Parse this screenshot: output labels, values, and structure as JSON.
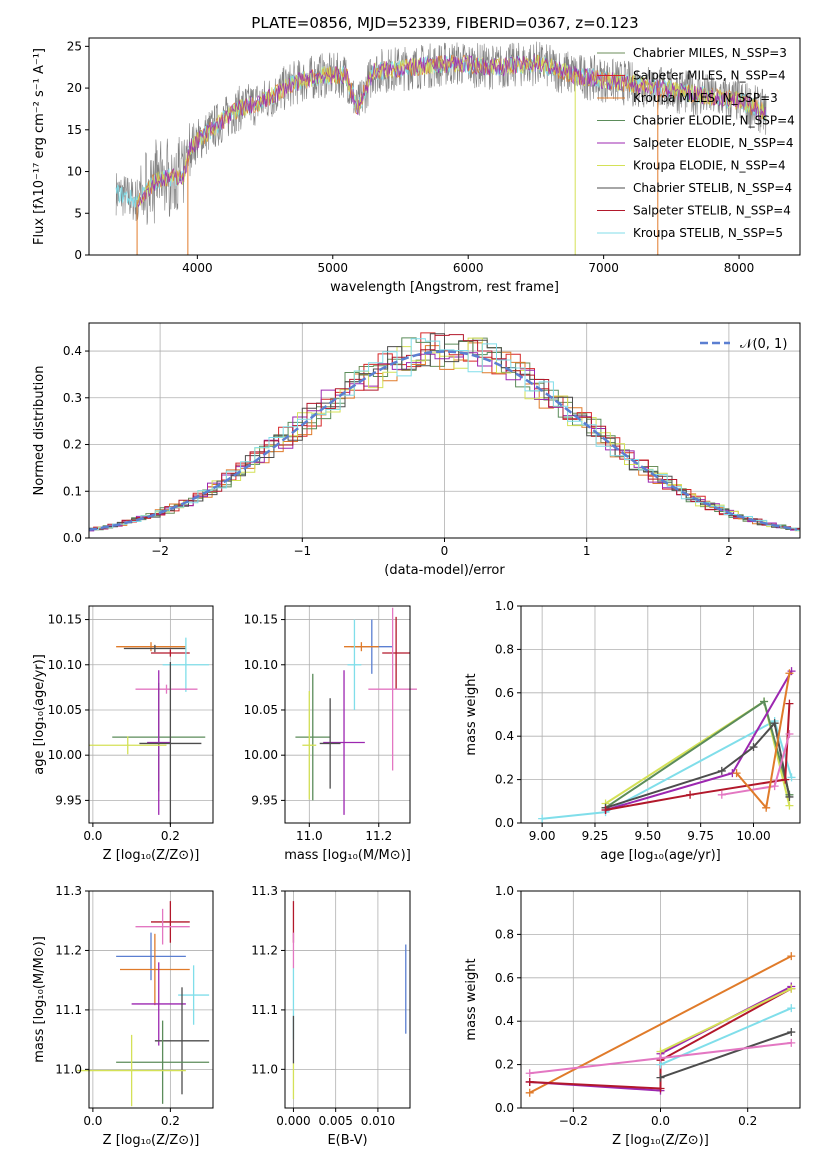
{
  "figure": {
    "title": "PLATE=0856, MJD=52339, FIBERID=0367, z=0.123"
  },
  "colors": {
    "chabrier_miles": "#6b8e5a",
    "salpeter_miles": "#d62728",
    "kroupa_miles": "#e07b2a",
    "chabrier_elodie": "#5b8c5a",
    "salpeter_elodie": "#9c27b0",
    "kroupa_elodie": "#d4e157",
    "chabrier_stelib": "#4d4d4d",
    "salpeter_stelib": "#b2182b",
    "kroupa_stelib": "#80deea",
    "data": "#808080",
    "normal": "#5b7fd1",
    "pink": "#e377c2",
    "blue": "#5b7fd1"
  },
  "chart_data": [
    {
      "id": "spectrum",
      "type": "line",
      "xlabel": "wavelength [Angstrom, rest frame]",
      "ylabel": "Flux [fλ10⁻¹⁷ erg cm⁻² s⁻¹ A⁻¹]",
      "xlim": [
        3200,
        8450
      ],
      "ylim": [
        0,
        26
      ],
      "xticks": [
        4000,
        5000,
        6000,
        7000,
        8000
      ],
      "yticks": [
        0,
        5,
        10,
        15,
        20,
        25
      ],
      "grid": false,
      "legend_position": "top-right",
      "legend": [
        {
          "label": "Chabrier MILES, N_SSP=3",
          "color_key": "chabrier_miles"
        },
        {
          "label": "Salpeter MILES, N_SSP=4",
          "color_key": "salpeter_miles"
        },
        {
          "label": "Kroupa MILES, N_SSP=3",
          "color_key": "kroupa_miles"
        },
        {
          "label": "Chabrier ELODIE, N_SSP=4",
          "color_key": "chabrier_elodie"
        },
        {
          "label": "Salpeter ELODIE, N_SSP=4",
          "color_key": "salpeter_elodie"
        },
        {
          "label": "Kroupa ELODIE, N_SSP=4",
          "color_key": "kroupa_elodie"
        },
        {
          "label": "Chabrier STELIB, N_SSP=4",
          "color_key": "chabrier_stelib"
        },
        {
          "label": "Salpeter STELIB, N_SSP=4",
          "color_key": "salpeter_stelib"
        },
        {
          "label": "Kroupa STELIB, N_SSP=5",
          "color_key": "kroupa_stelib"
        }
      ],
      "continuum": [
        [
          3400,
          7.5
        ],
        [
          3550,
          6.5
        ],
        [
          3700,
          9
        ],
        [
          3900,
          9.5
        ],
        [
          3950,
          13
        ],
        [
          4100,
          15
        ],
        [
          4300,
          17.5
        ],
        [
          4500,
          18.5
        ],
        [
          4700,
          20.5
        ],
        [
          4900,
          21.5
        ],
        [
          5100,
          21.5
        ],
        [
          5180,
          17.5
        ],
        [
          5300,
          22
        ],
        [
          5600,
          22.5
        ],
        [
          5900,
          23
        ],
        [
          6200,
          22.5
        ],
        [
          6500,
          23
        ],
        [
          6800,
          21.5
        ],
        [
          7200,
          20.5
        ],
        [
          7600,
          19.5
        ],
        [
          8000,
          18.5
        ],
        [
          8200,
          17
        ]
      ]
    },
    {
      "id": "residuals",
      "type": "histogram",
      "xlabel": "(data-model)/error",
      "ylabel": "Normed distribution",
      "xlim": [
        -2.5,
        2.5
      ],
      "ylim": [
        0,
        0.46
      ],
      "xticks": [
        -2,
        -1,
        0,
        1,
        2
      ],
      "yticks": [
        0.0,
        0.1,
        0.2,
        0.3,
        0.4
      ],
      "grid": true,
      "legend_position": "top-right",
      "legend": [
        {
          "label": "𝒩(0, 1)",
          "color_key": "normal"
        }
      ]
    },
    {
      "id": "age_vs_Z",
      "type": "errorbar",
      "xlabel": "Z [log₁₀(Z/Z⊙)]",
      "ylabel": "age  [log₁₀(age/yr)]",
      "xlim": [
        -0.01,
        0.31
      ],
      "ylim": [
        9.925,
        10.165
      ],
      "xticks": [
        0.0,
        0.2
      ],
      "yticks": [
        9.95,
        10.0,
        10.05,
        10.1,
        10.15
      ],
      "grid": true,
      "points": [
        {
          "x": 0.15,
          "y": 10.12,
          "xerr": 0.09,
          "yerr": 0.005,
          "color_key": "kroupa_miles"
        },
        {
          "x": 0.16,
          "y": 10.118,
          "xerr": 0.08,
          "yerr": 0.004,
          "color_key": "chabrier_stelib"
        },
        {
          "x": 0.2,
          "y": 10.113,
          "xerr": 0.05,
          "yerr": 0.004,
          "color_key": "salpeter_stelib"
        },
        {
          "x": 0.24,
          "y": 10.1,
          "xerr": 0.06,
          "yerr": 0.03,
          "color_key": "kroupa_stelib"
        },
        {
          "x": 0.19,
          "y": 10.073,
          "xerr": 0.08,
          "yerr": 0.005,
          "color_key": "pink"
        },
        {
          "x": 0.17,
          "y": 10.02,
          "xerr": 0.12,
          "yerr": 0.06,
          "color_key": "chabrier_elodie"
        },
        {
          "x": 0.17,
          "y": 10.014,
          "xerr": 0.03,
          "yerr": 0.08,
          "color_key": "salpeter_elodie"
        },
        {
          "x": 0.2,
          "y": 10.013,
          "xerr": 0.08,
          "yerr": 0.09,
          "color_key": "chabrier_stelib"
        },
        {
          "x": 0.09,
          "y": 10.011,
          "xerr": 0.1,
          "yerr": 0.01,
          "color_key": "kroupa_elodie"
        }
      ]
    },
    {
      "id": "age_vs_mass",
      "type": "errorbar",
      "xlabel": "mass [log₁₀(M/M⊙)]",
      "ylabel": "",
      "xlim": [
        10.93,
        11.29
      ],
      "ylim": [
        9.925,
        10.165
      ],
      "xticks": [
        11.0,
        11.2
      ],
      "yticks": [
        9.95,
        10.0,
        10.05,
        10.1,
        10.15
      ],
      "grid": true,
      "points": [
        {
          "x": 11.18,
          "y": 10.12,
          "xerr": 0.06,
          "yerr": 0.03,
          "color_key": "blue"
        },
        {
          "x": 11.15,
          "y": 10.12,
          "xerr": 0.05,
          "yerr": 0.005,
          "color_key": "kroupa_miles"
        },
        {
          "x": 11.13,
          "y": 10.1,
          "xerr": 0.02,
          "yerr": 0.05,
          "color_key": "kroupa_stelib"
        },
        {
          "x": 11.25,
          "y": 10.113,
          "xerr": 0.04,
          "yerr": 0.04,
          "color_key": "salpeter_stelib"
        },
        {
          "x": 11.24,
          "y": 10.073,
          "xerr": 0.07,
          "yerr": 0.09,
          "color_key": "pink"
        },
        {
          "x": 11.01,
          "y": 10.02,
          "xerr": 0.05,
          "yerr": 0.07,
          "color_key": "chabrier_elodie"
        },
        {
          "x": 11.1,
          "y": 10.014,
          "xerr": 0.06,
          "yerr": 0.08,
          "color_key": "salpeter_elodie"
        },
        {
          "x": 11.06,
          "y": 10.013,
          "xerr": 0.03,
          "yerr": 0.05,
          "color_key": "chabrier_stelib"
        },
        {
          "x": 11.0,
          "y": 10.011,
          "xerr": 0.02,
          "yerr": 0.06,
          "color_key": "kroupa_elodie"
        }
      ]
    },
    {
      "id": "weight_vs_age",
      "type": "line",
      "xlabel": "age  [log₁₀(age/yr)]",
      "ylabel": "mass weight",
      "xlim": [
        8.9,
        10.22
      ],
      "ylim": [
        0,
        1.0
      ],
      "xticks": [
        9.0,
        9.25,
        9.5,
        9.75,
        10.0
      ],
      "xticklabels": [
        "9.00",
        "9.25",
        "9.50",
        "9.75",
        "10.00"
      ],
      "yticks": [
        0.0,
        0.2,
        0.4,
        0.6,
        0.8,
        1.0
      ],
      "grid": true,
      "series": [
        {
          "color_key": "kroupa_stelib",
          "x": [
            9.0,
            9.3,
            10.1,
            10.18
          ],
          "y": [
            0.02,
            0.05,
            0.47,
            0.21
          ]
        },
        {
          "color_key": "kroupa_elodie",
          "x": [
            9.3,
            10.05,
            10.17
          ],
          "y": [
            0.09,
            0.56,
            0.08
          ]
        },
        {
          "color_key": "chabrier_elodie",
          "x": [
            9.3,
            10.05,
            10.17
          ],
          "y": [
            0.07,
            0.56,
            0.13
          ]
        },
        {
          "color_key": "salpeter_elodie",
          "x": [
            9.3,
            9.9,
            10.18
          ],
          "y": [
            0.06,
            0.23,
            0.7
          ]
        },
        {
          "color_key": "chabrier_stelib",
          "x": [
            9.3,
            9.85,
            10.0,
            10.1,
            10.17
          ],
          "y": [
            0.07,
            0.24,
            0.35,
            0.46,
            0.12
          ]
        },
        {
          "color_key": "salpeter_stelib",
          "x": [
            9.3,
            9.7,
            10.15,
            10.17
          ],
          "y": [
            0.06,
            0.13,
            0.2,
            0.55
          ]
        },
        {
          "color_key": "pink",
          "x": [
            9.85,
            10.1,
            10.17
          ],
          "y": [
            0.13,
            0.17,
            0.41
          ]
        },
        {
          "color_key": "kroupa_miles",
          "x": [
            9.92,
            10.06,
            10.17
          ],
          "y": [
            0.23,
            0.07,
            0.69
          ]
        }
      ]
    },
    {
      "id": "mass_vs_Z",
      "type": "errorbar",
      "xlabel": "Z [log₁₀(Z/Z⊙)]",
      "ylabel": "mass [log₁₀(M/M⊙)]",
      "xlim": [
        -0.01,
        0.31
      ],
      "ylim": [
        10.935,
        11.3
      ],
      "xticks": [
        0.0,
        0.2
      ],
      "yticks": [
        11.0,
        11.1,
        11.2,
        11.3
      ],
      "grid": true,
      "points": [
        {
          "x": 0.2,
          "y": 11.248,
          "xerr": 0.05,
          "yerr": 0.035,
          "color_key": "salpeter_stelib"
        },
        {
          "x": 0.18,
          "y": 11.24,
          "xerr": 0.07,
          "yerr": 0.03,
          "color_key": "pink"
        },
        {
          "x": 0.15,
          "y": 11.19,
          "xerr": 0.09,
          "yerr": 0.04,
          "color_key": "blue"
        },
        {
          "x": 0.16,
          "y": 11.168,
          "xerr": 0.09,
          "yerr": 0.06,
          "color_key": "kroupa_miles"
        },
        {
          "x": 0.26,
          "y": 11.125,
          "xerr": 0.04,
          "yerr": 0.05,
          "color_key": "kroupa_stelib"
        },
        {
          "x": 0.17,
          "y": 11.11,
          "xerr": 0.07,
          "yerr": 0.07,
          "color_key": "salpeter_elodie"
        },
        {
          "x": 0.23,
          "y": 11.048,
          "xerr": 0.07,
          "yerr": 0.09,
          "color_key": "chabrier_stelib"
        },
        {
          "x": 0.18,
          "y": 11.012,
          "xerr": 0.12,
          "yerr": 0.07,
          "color_key": "chabrier_elodie"
        },
        {
          "x": 0.1,
          "y": 10.998,
          "xerr": 0.14,
          "yerr": 0.06,
          "color_key": "kroupa_elodie"
        }
      ]
    },
    {
      "id": "mass_vs_ebv",
      "type": "errorbar",
      "xlabel": "E(B-V)",
      "ylabel": "",
      "xlim": [
        -0.001,
        0.0138
      ],
      "ylim": [
        10.935,
        11.3
      ],
      "xticks": [
        0.0,
        0.005,
        0.01
      ],
      "xticklabels": [
        "0.000",
        "0.005",
        "0.010"
      ],
      "yticks": [
        11.0,
        11.1,
        11.2,
        11.3
      ],
      "grid": true,
      "points": [
        {
          "x": 0.0,
          "y": 11.248,
          "xerr": 0,
          "yerr": 0.035,
          "color_key": "salpeter_stelib"
        },
        {
          "x": 0.0,
          "y": 11.2,
          "xerr": 0,
          "yerr": 0.03,
          "color_key": "pink"
        },
        {
          "x": 0.0,
          "y": 11.11,
          "xerr": 0,
          "yerr": 0.06,
          "color_key": "kroupa_stelib"
        },
        {
          "x": 0.0,
          "y": 11.05,
          "xerr": 0,
          "yerr": 0.04,
          "color_key": "chabrier_stelib"
        },
        {
          "x": 0.0,
          "y": 10.98,
          "xerr": 0,
          "yerr": 0.03,
          "color_key": "kroupa_elodie"
        },
        {
          "x": 0.0133,
          "y": 11.135,
          "xerr": 0,
          "yerr": 0.075,
          "color_key": "blue"
        }
      ]
    },
    {
      "id": "weight_vs_Z",
      "type": "line",
      "xlabel": "Z [log₁₀(Z/Z⊙)]",
      "ylabel": "mass weight",
      "xlim": [
        -0.32,
        0.32
      ],
      "ylim": [
        0,
        1.0
      ],
      "xticks": [
        -0.2,
        0.0,
        0.2
      ],
      "xticklabels": [
        "−0.2",
        "0.0",
        "0.2"
      ],
      "yticks": [
        0.0,
        0.2,
        0.4,
        0.6,
        0.8,
        1.0
      ],
      "grid": true,
      "series": [
        {
          "color_key": "kroupa_miles",
          "x": [
            -0.3,
            0.3
          ],
          "y": [
            0.07,
            0.7
          ]
        },
        {
          "color_key": "salpeter_elodie",
          "x": [
            -0.3,
            0.0,
            0.0,
            0.3
          ],
          "y": [
            0.12,
            0.08,
            0.25,
            0.56
          ]
        },
        {
          "color_key": "salpeter_stelib",
          "x": [
            -0.3,
            0.0,
            0.0,
            0.3
          ],
          "y": [
            0.12,
            0.09,
            0.22,
            0.55
          ]
        },
        {
          "color_key": "kroupa_elodie",
          "x": [
            0.0,
            0.3
          ],
          "y": [
            0.26,
            0.55
          ]
        },
        {
          "color_key": "kroupa_stelib",
          "x": [
            0.0,
            0.3
          ],
          "y": [
            0.2,
            0.46
          ]
        },
        {
          "color_key": "chabrier_stelib",
          "x": [
            0.0,
            0.3
          ],
          "y": [
            0.14,
            0.35
          ]
        },
        {
          "color_key": "pink",
          "x": [
            -0.3,
            0.0,
            0.3
          ],
          "y": [
            0.16,
            0.23,
            0.3
          ]
        }
      ]
    }
  ]
}
